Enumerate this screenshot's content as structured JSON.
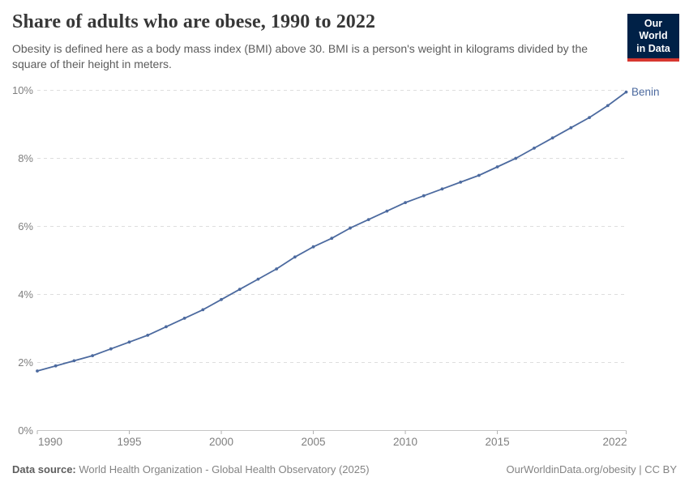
{
  "header": {
    "title": "Share of adults who are obese, 1990 to 2022",
    "subtitle": "Obesity is defined here as a body mass index (BMI) above 30. BMI is a person's weight in kilograms divided by the square of their height in meters.",
    "logo": {
      "line1": "Our World",
      "line2": "in Data"
    }
  },
  "chart_data": {
    "type": "line",
    "title": "Share of adults who are obese, 1990 to 2022",
    "x": [
      1990,
      1991,
      1992,
      1993,
      1994,
      1995,
      1996,
      1997,
      1998,
      1999,
      2000,
      2001,
      2002,
      2003,
      2004,
      2005,
      2006,
      2007,
      2008,
      2009,
      2010,
      2011,
      2012,
      2013,
      2014,
      2015,
      2016,
      2017,
      2018,
      2019,
      2020,
      2021,
      2022
    ],
    "series": [
      {
        "name": "Benin",
        "values": [
          1.75,
          1.9,
          2.05,
          2.2,
          2.4,
          2.6,
          2.8,
          3.05,
          3.3,
          3.55,
          3.85,
          4.15,
          4.45,
          4.75,
          5.1,
          5.4,
          5.65,
          5.95,
          6.2,
          6.45,
          6.7,
          6.9,
          7.1,
          7.3,
          7.5,
          7.75,
          8.0,
          8.3,
          8.6,
          8.9,
          9.2,
          9.55,
          9.95
        ]
      }
    ],
    "xlabel": "",
    "ylabel": "",
    "xlim": [
      1990,
      2022
    ],
    "ylim": [
      0,
      10
    ],
    "y_ticks": [
      {
        "value": 0,
        "label": "0%"
      },
      {
        "value": 2,
        "label": "2%"
      },
      {
        "value": 4,
        "label": "4%"
      },
      {
        "value": 6,
        "label": "6%"
      },
      {
        "value": 8,
        "label": "8%"
      },
      {
        "value": 10,
        "label": "10%"
      }
    ],
    "x_ticks": [
      {
        "value": 1990,
        "label": "1990"
      },
      {
        "value": 1995,
        "label": "1995"
      },
      {
        "value": 2000,
        "label": "2000"
      },
      {
        "value": 2005,
        "label": "2005"
      },
      {
        "value": 2010,
        "label": "2010"
      },
      {
        "value": 2015,
        "label": "2015"
      },
      {
        "value": 2022,
        "label": "2022"
      }
    ],
    "grid": "horizontal-dashed",
    "legend": "end-of-line-label"
  },
  "footer": {
    "source_label": "Data source:",
    "source_text": "World Health Organization - Global Health Observatory (2025)",
    "attribution": "OurWorldinData.org/obesity | CC BY"
  },
  "colors": {
    "line": "#4c6a9f",
    "entity_label": "#4c6a9f",
    "grid": "#dedede",
    "axis_line": "#c6c6c6",
    "tick_mark": "#b0b0b0",
    "tick_label": "#7f7f7f",
    "logo_bg": "#002147",
    "logo_stripe": "#d7372f"
  }
}
